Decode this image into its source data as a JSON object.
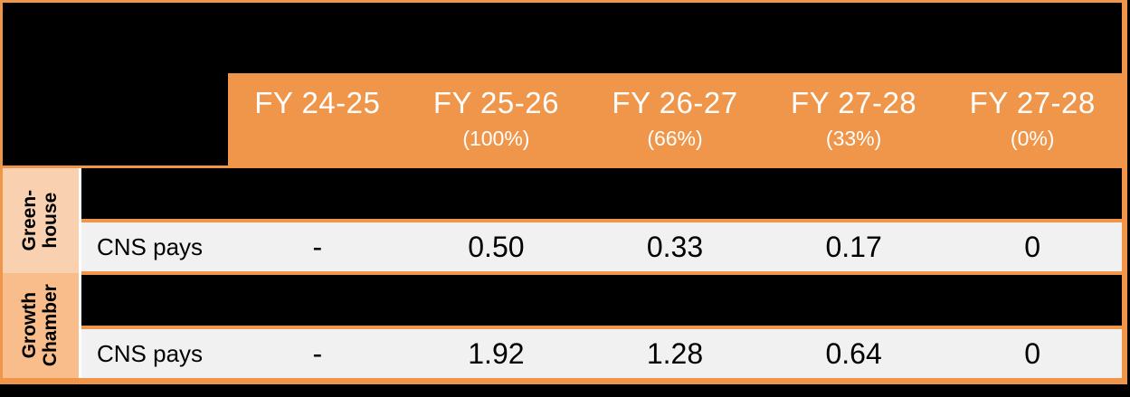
{
  "header": {
    "columns": [
      {
        "label": "FY 24-25",
        "sub": ""
      },
      {
        "label": "FY 25-26",
        "sub": "(100%)"
      },
      {
        "label": "FY 26-27",
        "sub": "(66%)"
      },
      {
        "label": "FY 27-28",
        "sub": "(33%)"
      },
      {
        "label": "FY 27-28",
        "sub": "(0%)"
      }
    ]
  },
  "sections": [
    {
      "group_label_line1": "Green-",
      "group_label_line2": "house",
      "row_label": "CNS pays",
      "values": [
        "-",
        "0.50",
        "0.33",
        "0.17",
        "0"
      ]
    },
    {
      "group_label_line1": "Growth",
      "group_label_line2": "Chamber",
      "row_label": "CNS pays",
      "values": [
        "-",
        "1.92",
        "1.28",
        "0.64",
        "0"
      ]
    }
  ],
  "colors": {
    "accent_orange": "#F0964A",
    "peach_light": "#F9D0B0",
    "peach_medium": "#F8BD8B",
    "row_gray": "#F1F1F1",
    "redacted_black": "#000000"
  }
}
